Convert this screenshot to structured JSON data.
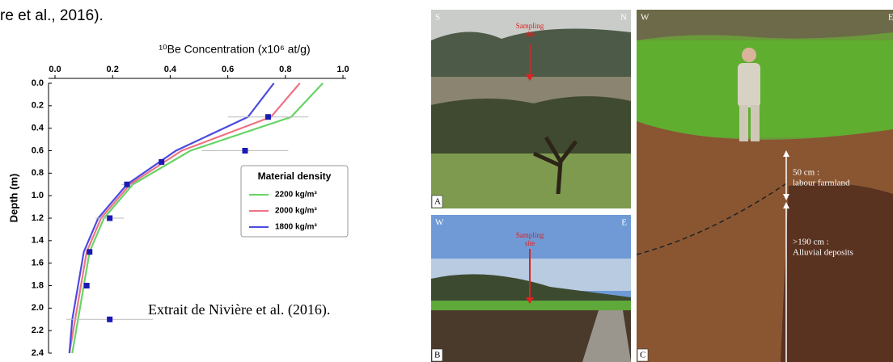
{
  "header_fragment": "re et al., 2016).",
  "caption": "Extrait de Nivière et al. (2016).",
  "chart_data": {
    "type": "line",
    "title": "¹⁰Be Concentration (x10⁶ at/g)",
    "ylabel": "Depth (m)",
    "xlim": [
      0,
      1
    ],
    "xticks": [
      {
        "value": 0,
        "label": "0.0"
      },
      0.2,
      0.4,
      0.6,
      0.8,
      {
        "value": 1,
        "label": "1.0"
      }
    ],
    "ylim": [
      0,
      2.4
    ],
    "yticks": [
      {
        "value": 0,
        "label": "0.0"
      },
      0.2,
      0.4,
      0.6,
      0.8,
      {
        "value": 1,
        "label": "1.0"
      },
      1.2,
      1.4,
      1.6,
      1.8,
      {
        "value": 2,
        "label": "2.0"
      },
      2.2,
      2.4
    ],
    "y_inverted": true,
    "legend_title": "Material density",
    "legend": "right",
    "depths": [
      0,
      0.3,
      0.6,
      0.9,
      1.2,
      1.5,
      1.8,
      2.1,
      2.4
    ],
    "series": [
      {
        "name": "2200 kg/m³",
        "color": "#66d466",
        "values": [
          0.93,
          0.82,
          0.47,
          0.27,
          0.17,
          0.12,
          0.1,
          0.08,
          0.06
        ]
      },
      {
        "name": "2000 kg/m³",
        "color": "#ee7384",
        "values": [
          0.85,
          0.75,
          0.44,
          0.26,
          0.16,
          0.11,
          0.09,
          0.07,
          0.05
        ]
      },
      {
        "name": "1800 kg/m³",
        "color": "#4b4be0",
        "values": [
          0.76,
          0.67,
          0.42,
          0.25,
          0.15,
          0.1,
          0.08,
          0.06,
          0.05
        ]
      }
    ],
    "points": {
      "color": "#1a1ab4",
      "x": [
        0.74,
        0.66,
        0.37,
        0.25,
        0.19,
        0.12,
        0.11,
        0.19
      ],
      "y": [
        0.3,
        0.6,
        0.7,
        0.9,
        1.2,
        1.5,
        1.8,
        2.1
      ],
      "xerr": [
        0.14,
        0.15,
        0.01,
        0.02,
        0.05,
        0.01,
        0.01,
        0.15
      ]
    }
  },
  "photos": [
    {
      "letter": "A",
      "left": "S",
      "right": "N",
      "note": [
        "Sampling",
        "site"
      ]
    },
    {
      "letter": "B",
      "left": "W",
      "right": "E",
      "note": [
        "Sampling",
        "site"
      ]
    },
    {
      "letter": "C",
      "left": "W",
      "right": "E",
      "note": [
        "50 cm :",
        "labour farmland",
        ">190 cm :",
        "Alluvial deposits"
      ]
    }
  ]
}
